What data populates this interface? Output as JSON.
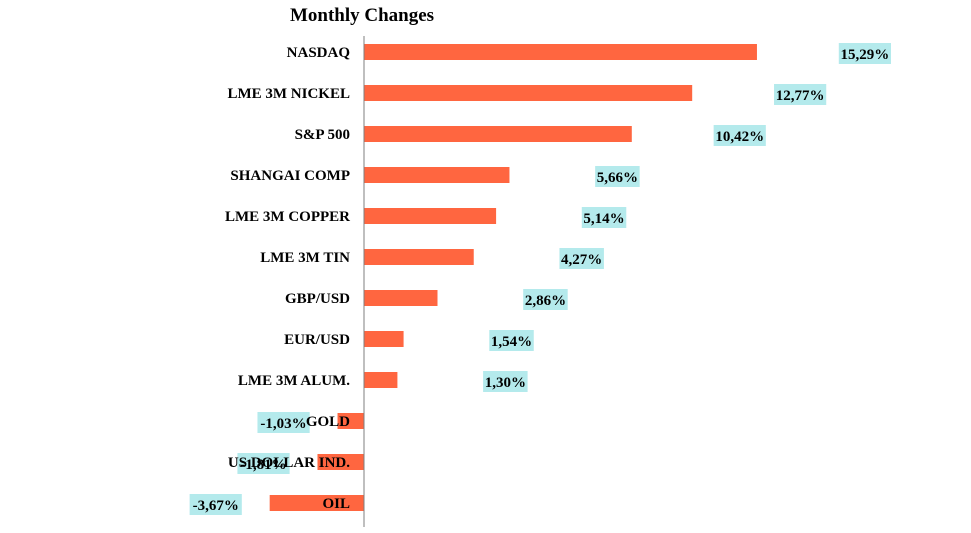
{
  "chart_data": {
    "type": "bar",
    "orientation": "horizontal",
    "title": "Monthly Changes",
    "xlabel": "",
    "ylabel": "",
    "categories": [
      "NASDAQ",
      "LME 3M NICKEL",
      "S&P 500",
      "SHANGAI COMP",
      "LME 3M COPPER",
      "LME 3M TIN",
      "GBP/USD",
      "EUR/USD",
      "LME 3M ALUM.",
      "GOLD",
      "US DOLLAR IND.",
      "OIL"
    ],
    "values": [
      15.29,
      12.77,
      10.42,
      5.66,
      5.14,
      4.27,
      2.86,
      1.54,
      1.3,
      -1.03,
      -1.81,
      -3.67
    ],
    "value_labels": [
      "15,29%",
      "12,77%",
      "10,42%",
      "5,66%",
      "5,14%",
      "4,27%",
      "2,86%",
      "1,54%",
      "1,30%",
      "-1,03%",
      "-1,81%",
      "-3,67%"
    ],
    "grid": false,
    "legend": "none",
    "colors": {
      "bar": "#FF6640",
      "label_bg": "#B4EAEC",
      "axis": "#7f7f7f"
    }
  }
}
